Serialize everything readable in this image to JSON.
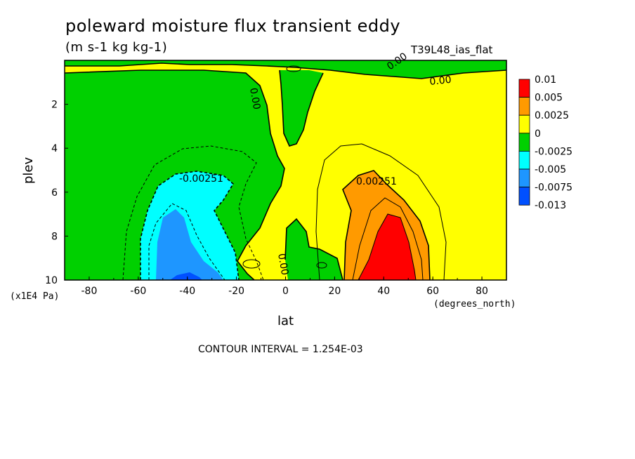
{
  "chart_data": {
    "type": "contour",
    "title": "poleward moisture flux transient eddy",
    "units": "(m s-1 kg kg-1)",
    "subtitle": "T39L48_ias_flat",
    "xlabel": "lat",
    "ylabel": "plev",
    "xunit": "(degrees_north)",
    "yunit": "(x1E4 Pa)",
    "xlim": [
      -90,
      90
    ],
    "ylim": [
      0,
      10
    ],
    "yreversed": true,
    "xticks": [
      "-80",
      "-60",
      "-40",
      "-20",
      "0",
      "20",
      "40",
      "60",
      "80"
    ],
    "yticks": [
      "2",
      "4",
      "6",
      "8",
      "10"
    ],
    "contour_labels": [
      "-0.00251",
      "0.00251",
      "0.00",
      "0.00",
      "0.00",
      "0.00"
    ],
    "footer": "CONTOUR INTERVAL = 1.254E-03",
    "legend": {
      "placement": "right",
      "labels": [
        "0.01",
        "0.005",
        "0.0025",
        "0",
        "-0.0025",
        "-0.005",
        "-0.0075",
        "-0.013"
      ],
      "colors": [
        "#ff0000",
        "#ff9a00",
        "#ffff00",
        "#00d000",
        "#00ffff",
        "#1e96ff",
        "#0050ff"
      ]
    }
  }
}
